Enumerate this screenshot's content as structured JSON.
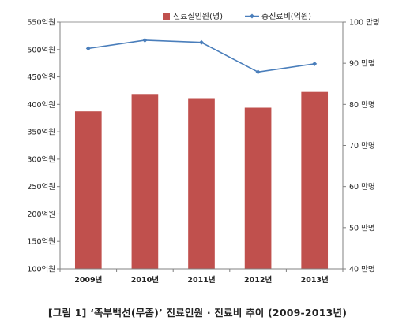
{
  "caption": "[그림 1] ‘족부백선(무좀)’ 진료인원 · 진료비 추이 (2009-2013년)",
  "chart_data": {
    "type": "bar",
    "categories": [
      "2009년",
      "2010년",
      "2011년",
      "2012년",
      "2013년"
    ],
    "series": [
      {
        "name": "진료실인원(명)",
        "type": "bar",
        "axis": "right",
        "color": "#c0504d",
        "values": [
          783000,
          825000,
          815000,
          792000,
          830000
        ]
      },
      {
        "name": "총진료비(억원)",
        "type": "line",
        "axis": "left",
        "color": "#4a7ebb",
        "values": [
          502,
          517,
          513,
          459,
          474
        ]
      }
    ],
    "left_axis": {
      "ylim": [
        100,
        550
      ],
      "ticks": [
        100,
        150,
        200,
        250,
        300,
        350,
        400,
        450,
        500,
        550
      ],
      "tick_labels": [
        "100억원",
        "150억원",
        "200억원",
        "250억원",
        "300억원",
        "350억원",
        "400억원",
        "450억원",
        "500억원",
        "550억원"
      ]
    },
    "right_axis": {
      "ylim": [
        400000,
        1000000
      ],
      "ticks": [
        400000,
        500000,
        600000,
        700000,
        800000,
        900000,
        1000000
      ],
      "tick_labels": [
        "40 만명",
        "50 만명",
        "60 만명",
        "70 만명",
        "80 만명",
        "90 만명",
        "100 만명"
      ]
    },
    "legend_position": "top-right",
    "grid": false
  }
}
